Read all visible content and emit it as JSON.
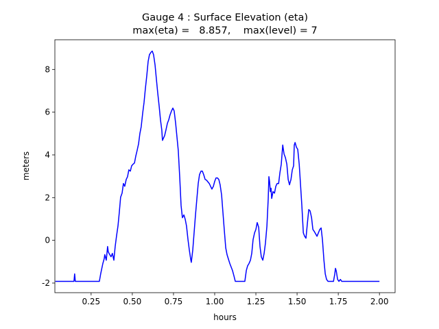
{
  "chart_data": {
    "type": "line",
    "title": "Gauge 4 : Surface Elevation (eta)",
    "subtitle": "max(eta) =   8.857,    max(level) = 7",
    "x_label": "hours",
    "y_label": "meters",
    "xlim": [
      0.03,
      2.095
    ],
    "ylim": [
      -2.45,
      9.39
    ],
    "xticks": [
      0.25,
      {
        "value": 0.5,
        "label": "0.50"
      },
      0.75,
      {
        "value": 1.0,
        "label": "1.00"
      },
      1.25,
      {
        "value": 1.5,
        "label": "1.50"
      },
      1.75,
      {
        "value": 2.0,
        "label": "2.00"
      }
    ],
    "yticks": [
      -2,
      0,
      2,
      4,
      6,
      8
    ],
    "grid": false,
    "x": [
      0.033,
      0.146,
      0.15,
      0.154,
      0.3,
      0.308,
      0.321,
      0.329,
      0.333,
      0.342,
      0.35,
      0.354,
      0.363,
      0.371,
      0.379,
      0.388,
      0.396,
      0.404,
      0.413,
      0.421,
      0.429,
      0.438,
      0.446,
      0.454,
      0.463,
      0.471,
      0.479,
      0.488,
      0.496,
      0.504,
      0.513,
      0.521,
      0.529,
      0.538,
      0.546,
      0.554,
      0.563,
      0.571,
      0.579,
      0.588,
      0.596,
      0.604,
      0.613,
      0.621,
      0.629,
      0.638,
      0.646,
      0.654,
      0.663,
      0.671,
      0.679,
      0.683,
      0.696,
      0.704,
      0.713,
      0.721,
      0.729,
      0.738,
      0.746,
      0.754,
      0.763,
      0.771,
      0.779,
      0.788,
      0.796,
      0.804,
      0.813,
      0.821,
      0.829,
      0.838,
      0.846,
      0.854,
      0.858,
      0.867,
      0.875,
      0.883,
      0.892,
      0.9,
      0.908,
      0.917,
      0.925,
      0.933,
      0.942,
      0.95,
      0.967,
      0.983,
      0.992,
      1.0,
      1.008,
      1.017,
      1.025,
      1.033,
      1.042,
      1.05,
      1.058,
      1.067,
      1.075,
      1.083,
      1.092,
      1.1,
      1.108,
      1.117,
      1.125,
      1.183,
      1.192,
      1.2,
      1.208,
      1.217,
      1.225,
      1.233,
      1.242,
      1.25,
      1.258,
      1.267,
      1.275,
      1.283,
      1.292,
      1.3,
      1.308,
      1.317,
      1.325,
      1.329,
      1.333,
      1.338,
      1.342,
      1.346,
      1.354,
      1.363,
      1.371,
      1.379,
      1.388,
      1.396,
      1.404,
      1.413,
      1.421,
      1.429,
      1.438,
      1.446,
      1.454,
      1.463,
      1.471,
      1.479,
      1.483,
      1.488,
      1.496,
      1.504,
      1.513,
      1.521,
      1.529,
      1.538,
      1.546,
      1.554,
      1.563,
      1.571,
      1.579,
      1.588,
      1.596,
      1.604,
      1.621,
      1.638,
      1.646,
      1.654,
      1.663,
      1.671,
      1.679,
      1.688,
      1.721,
      1.729,
      1.733,
      1.738,
      1.746,
      1.754,
      1.763,
      1.771,
      2.0
    ],
    "series": [
      {
        "name": "eta",
        "color": "#0000ff",
        "values": [
          -1.92,
          -1.92,
          -1.57,
          -1.92,
          -1.92,
          -1.57,
          -1.09,
          -0.87,
          -0.67,
          -0.93,
          -0.29,
          -0.54,
          -0.67,
          -0.77,
          -0.61,
          -0.93,
          -0.29,
          0.19,
          0.67,
          1.31,
          2.02,
          2.21,
          2.66,
          2.53,
          2.85,
          2.98,
          3.3,
          3.24,
          3.49,
          3.56,
          3.62,
          3.94,
          4.2,
          4.52,
          5.0,
          5.32,
          5.96,
          6.44,
          7.08,
          7.72,
          8.37,
          8.69,
          8.8,
          8.86,
          8.69,
          8.21,
          7.56,
          6.92,
          6.28,
          5.64,
          5.16,
          4.68,
          4.9,
          5.16,
          5.48,
          5.64,
          5.87,
          6.06,
          6.19,
          6.06,
          5.48,
          4.84,
          4.2,
          2.92,
          1.63,
          1.06,
          1.19,
          0.99,
          0.67,
          0.03,
          -0.45,
          -0.87,
          -1.03,
          -0.45,
          0.35,
          1.15,
          1.96,
          2.66,
          3.08,
          3.24,
          3.24,
          3.08,
          2.85,
          2.82,
          2.66,
          2.4,
          2.53,
          2.76,
          2.92,
          2.92,
          2.85,
          2.6,
          2.12,
          1.31,
          0.51,
          -0.35,
          -0.67,
          -0.87,
          -1.09,
          -1.25,
          -1.41,
          -1.67,
          -1.92,
          -1.92,
          -1.41,
          -1.19,
          -1.09,
          -0.93,
          -0.61,
          0.03,
          0.35,
          0.51,
          0.83,
          0.61,
          -0.29,
          -0.77,
          -0.93,
          -0.61,
          -0.13,
          0.67,
          1.96,
          2.98,
          2.76,
          2.28,
          2.44,
          1.96,
          2.28,
          2.21,
          2.53,
          2.66,
          2.66,
          3.17,
          3.56,
          4.46,
          4.04,
          3.88,
          3.56,
          2.85,
          2.6,
          2.85,
          3.3,
          3.49,
          4.46,
          4.58,
          4.36,
          4.26,
          3.56,
          2.6,
          1.63,
          0.35,
          0.19,
          0.1,
          0.83,
          1.44,
          1.38,
          1.06,
          0.51,
          0.42,
          0.19,
          0.51,
          0.58,
          0.03,
          -0.93,
          -1.57,
          -1.83,
          -1.92,
          -1.92,
          -1.57,
          -1.31,
          -1.44,
          -1.83,
          -1.92,
          -1.83,
          -1.92,
          -1.92
        ]
      }
    ]
  }
}
